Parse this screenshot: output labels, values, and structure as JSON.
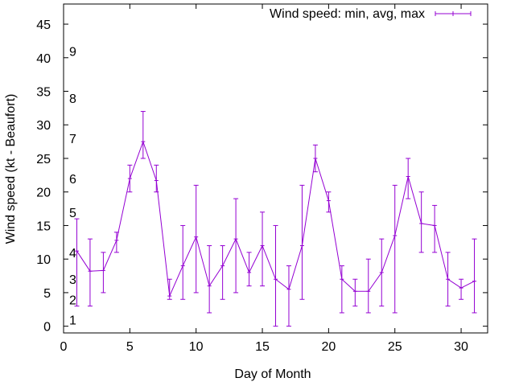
{
  "chart_data": {
    "type": "line",
    "xlabel": "Day of Month",
    "ylabel": "Wind speed (kt - Beaufort)",
    "xlim": [
      0,
      32
    ],
    "ylim": [
      -1,
      48
    ],
    "x_ticks": [
      0,
      5,
      10,
      15,
      20,
      25,
      30
    ],
    "y_ticks": [
      0,
      5,
      10,
      15,
      20,
      25,
      30,
      35,
      40,
      45
    ],
    "grid": false,
    "legend_position": "top-right",
    "beaufort_labels": [
      {
        "label": "1",
        "y": 1
      },
      {
        "label": "2",
        "y": 4
      },
      {
        "label": "3",
        "y": 7
      },
      {
        "label": "4",
        "y": 11
      },
      {
        "label": "5",
        "y": 17
      },
      {
        "label": "6",
        "y": 22
      },
      {
        "label": "7",
        "y": 28
      },
      {
        "label": "8",
        "y": 34
      },
      {
        "label": "9",
        "y": 41
      }
    ],
    "series": [
      {
        "name": "Wind speed: min, avg, max",
        "color": "#9400d3",
        "points": [
          {
            "x": 1,
            "min": 3,
            "avg": 11.2,
            "max": 16
          },
          {
            "x": 2,
            "min": 3,
            "avg": 8.2,
            "max": 13
          },
          {
            "x": 3,
            "min": 5,
            "avg": 8.3,
            "max": 11
          },
          {
            "x": 4,
            "min": 11,
            "avg": 12.8,
            "max": 14
          },
          {
            "x": 5,
            "min": 20,
            "avg": 22,
            "max": 24
          },
          {
            "x": 6,
            "min": 25,
            "avg": 27.5,
            "max": 32
          },
          {
            "x": 7,
            "min": 20,
            "avg": 21.7,
            "max": 24
          },
          {
            "x": 8,
            "min": 4,
            "avg": 4.5,
            "max": 7
          },
          {
            "x": 9,
            "min": 4,
            "avg": 9,
            "max": 15
          },
          {
            "x": 10,
            "min": 5,
            "avg": 13.3,
            "max": 21
          },
          {
            "x": 11,
            "min": 2,
            "avg": 6,
            "max": 12
          },
          {
            "x": 12,
            "min": 4,
            "avg": 9,
            "max": 12
          },
          {
            "x": 13,
            "min": 5,
            "avg": 13,
            "max": 19
          },
          {
            "x": 14,
            "min": 6,
            "avg": 8,
            "max": 11
          },
          {
            "x": 15,
            "min": 6,
            "avg": 12,
            "max": 17
          },
          {
            "x": 16,
            "min": 0,
            "avg": 7,
            "max": 15
          },
          {
            "x": 17,
            "min": 0,
            "avg": 5.5,
            "max": 9
          },
          {
            "x": 18,
            "min": 4,
            "avg": 12,
            "max": 21
          },
          {
            "x": 19,
            "min": 23,
            "avg": 25,
            "max": 27
          },
          {
            "x": 20,
            "min": 17,
            "avg": 18.7,
            "max": 20
          },
          {
            "x": 21,
            "min": 2,
            "avg": 7,
            "max": 9
          },
          {
            "x": 22,
            "min": 3,
            "avg": 5.2,
            "max": 7
          },
          {
            "x": 23,
            "min": 2,
            "avg": 5.2,
            "max": 10
          },
          {
            "x": 24,
            "min": 3,
            "avg": 8,
            "max": 13
          },
          {
            "x": 25,
            "min": 2,
            "avg": 13.5,
            "max": 21
          },
          {
            "x": 26,
            "min": 19,
            "avg": 22.3,
            "max": 25
          },
          {
            "x": 27,
            "min": 11,
            "avg": 15.3,
            "max": 20
          },
          {
            "x": 28,
            "min": 11,
            "avg": 15,
            "max": 18
          },
          {
            "x": 29,
            "min": 3,
            "avg": 7,
            "max": 11
          },
          {
            "x": 30,
            "min": 4,
            "avg": 5.7,
            "max": 7
          },
          {
            "x": 31,
            "min": 2,
            "avg": 6.7,
            "max": 13
          }
        ]
      }
    ]
  }
}
